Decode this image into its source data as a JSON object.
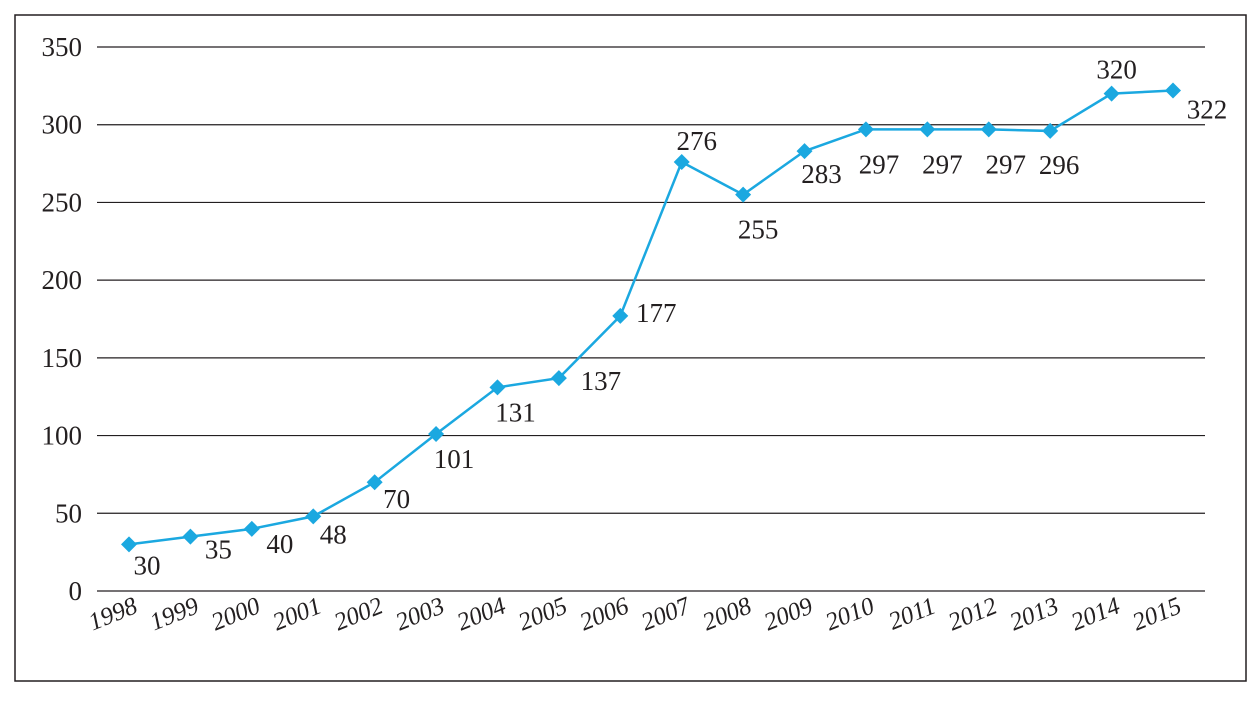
{
  "chart_data": {
    "type": "line",
    "title": "",
    "xlabel": "",
    "ylabel": "",
    "categories": [
      "1998",
      "1999",
      "2000",
      "2001",
      "2002",
      "2003",
      "2004",
      "2005",
      "2006",
      "2007",
      "2008",
      "2009",
      "2010",
      "2011",
      "2012",
      "2013",
      "2014",
      "2015"
    ],
    "series": [
      {
        "values": [
          30,
          35,
          40,
          48,
          70,
          101,
          131,
          137,
          177,
          276,
          255,
          283,
          297,
          297,
          297,
          296,
          320,
          322
        ],
        "color": "#1ba8e0",
        "marker": "diamond"
      }
    ],
    "ylim": [
      0,
      350
    ],
    "yticks": [
      "0",
      "50",
      "100",
      "150",
      "200",
      "250",
      "300",
      "350"
    ],
    "data_labels": [
      "30",
      "35",
      "40",
      "48",
      "70",
      "101",
      "131",
      "137",
      "177",
      "276",
      "255",
      "283",
      "297",
      "297",
      "297",
      "296",
      "320",
      "322"
    ],
    "grid": "horizontal",
    "legend": "none"
  }
}
